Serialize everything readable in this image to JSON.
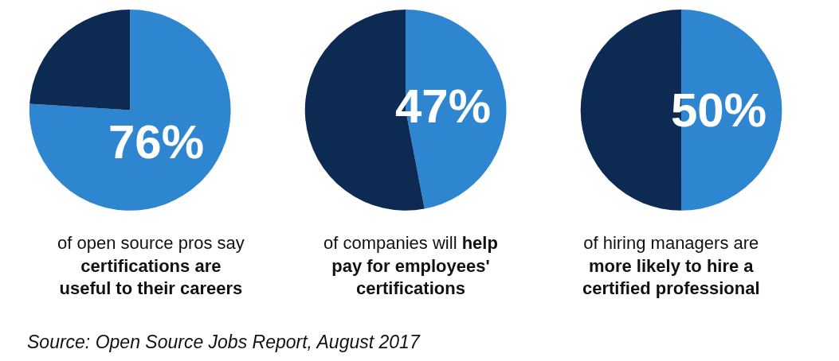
{
  "chart_data": [
    {
      "type": "pie",
      "categories": [
        null,
        null
      ],
      "values": [
        76,
        24
      ],
      "colors": [
        "#2e86d1",
        "#0c2a52"
      ],
      "value_labels": [
        "76%",
        null
      ],
      "annotations": [
        "of open source pros say",
        "certifications are useful to their careers",
        "Source: Open Source Jobs Report, August 2017"
      ]
    },
    {
      "type": "pie",
      "categories": [
        null,
        null
      ],
      "values": [
        47,
        53
      ],
      "colors": [
        "#2e86d1",
        "#0c2a52"
      ],
      "value_labels": [
        "47%",
        null
      ],
      "annotations": [
        "of companies will",
        "help pay for employees' certifications"
      ]
    },
    {
      "type": "pie",
      "categories": [
        null,
        null
      ],
      "values": [
        50,
        50
      ],
      "colors": [
        "#2e86d1",
        "#0c2a52"
      ],
      "value_labels": [
        "50%",
        null
      ],
      "annotations": [
        "of hiring managers are",
        "more likely to hire a certified professional"
      ]
    }
  ]
}
